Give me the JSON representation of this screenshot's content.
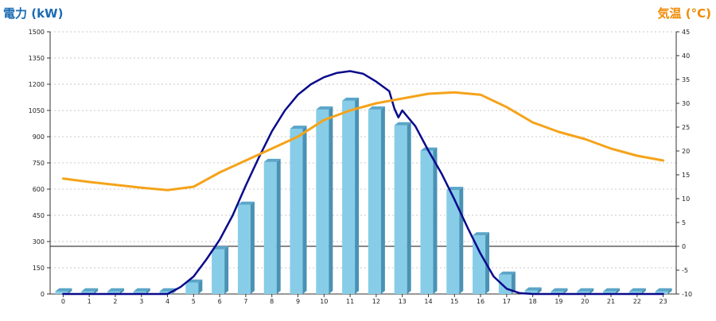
{
  "chart_data": {
    "type": "bar",
    "ylabel_left": "電力 (kW)",
    "ylabel_right": "気温 (°C)",
    "categories": [
      "0",
      "1",
      "2",
      "3",
      "4",
      "5",
      "6",
      "7",
      "8",
      "9",
      "10",
      "11",
      "12",
      "13",
      "14",
      "15",
      "16",
      "17",
      "18",
      "19",
      "20",
      "21",
      "22",
      "23"
    ],
    "y_left_ticks": [
      0,
      150,
      300,
      450,
      600,
      750,
      900,
      1050,
      1200,
      1350,
      1500
    ],
    "y_right_ticks": [
      -10,
      -5,
      0,
      5,
      10,
      15,
      20,
      25,
      30,
      35,
      40,
      45
    ],
    "ylim_left": [
      0,
      1500
    ],
    "ylim_right": [
      -10,
      45
    ],
    "series": [
      {
        "axis": "left",
        "type": "bar",
        "color": "#87cde8",
        "values": [
          15,
          15,
          15,
          15,
          15,
          65,
          255,
          510,
          755,
          945,
          1055,
          1105,
          1055,
          965,
          820,
          595,
          335,
          110,
          20,
          15,
          15,
          15,
          15,
          15
        ]
      },
      {
        "axis": "left",
        "type": "line",
        "color": "#0a0a8c",
        "x": [
          0,
          1,
          2,
          3,
          4,
          4.5,
          5,
          5.5,
          6,
          6.5,
          7,
          7.5,
          8,
          8.5,
          9,
          9.5,
          10,
          10.5,
          11,
          11.5,
          12,
          12.5,
          12.7,
          12.85,
          13,
          13.5,
          14,
          14.5,
          15,
          15.5,
          16,
          16.5,
          17,
          17.5,
          18,
          19,
          20,
          21,
          22,
          23
        ],
        "values": [
          0,
          0,
          0,
          0,
          0,
          40,
          100,
          200,
          310,
          450,
          620,
          780,
          930,
          1050,
          1140,
          1200,
          1240,
          1265,
          1275,
          1260,
          1215,
          1160,
          1060,
          1010,
          1050,
          960,
          820,
          690,
          540,
          380,
          230,
          100,
          30,
          5,
          0,
          0,
          0,
          0,
          0,
          0
        ]
      },
      {
        "axis": "right",
        "type": "line",
        "color": "#f5a31a",
        "x": [
          0,
          1,
          2,
          3,
          4,
          5,
          6,
          7,
          8,
          9,
          10,
          11,
          12,
          13,
          14,
          15,
          16,
          17,
          18,
          19,
          20,
          21,
          22,
          23
        ],
        "values": [
          14.2,
          13.5,
          12.9,
          12.3,
          11.8,
          12.5,
          15.5,
          18.0,
          20.5,
          23.0,
          26.5,
          28.5,
          30.0,
          31.0,
          32.0,
          32.3,
          31.8,
          29.2,
          26.0,
          24.0,
          22.5,
          20.5,
          19.0,
          18.0
        ]
      }
    ],
    "grid": true,
    "reference_line_right": 0
  }
}
